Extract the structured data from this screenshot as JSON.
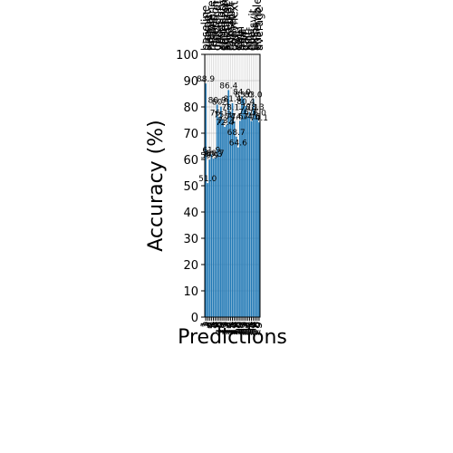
{
  "chart_data": {
    "type": "bar",
    "title": "",
    "xlabel": "Predictions",
    "ylabel": "Accuracy (%)",
    "ylim": [
      0,
      100
    ],
    "yticks": [
      0,
      10,
      20,
      30,
      40,
      50,
      60,
      70,
      80,
      90,
      100
    ],
    "grid": true,
    "color": "#1f77b4",
    "top_labels": [
      "baseline",
      "alexnet",
      "nasnet",
      "mobilenet",
      "resnet",
      "inception",
      "densenet",
      "vgg",
      "xception",
      "efficientnet",
      "squeezenet",
      "shufflenet",
      "mnasnet",
      "ghostnet",
      "regnet",
      "convnext",
      "vit",
      "deit",
      "swin",
      "beit",
      "levit",
      "cait",
      "xcit",
      "pit",
      "coat",
      "crossvit",
      "twins",
      "ensemble",
      "average"
    ],
    "values": [
      88.9,
      51.0,
      59.9,
      61.9,
      60.3,
      60.7,
      80.9,
      76.1,
      80.1,
      75.3,
      72.4,
      73.1,
      86.4,
      78.1,
      81.4,
      74.6,
      68.7,
      64.6,
      74.7,
      84.0,
      83.0,
      80.4,
      76.3,
      78.1,
      74.6,
      83.0,
      78.3,
      76.0,
      74.1
    ],
    "value_labels": [
      "88.9",
      "51.0",
      "59.9",
      "61.9",
      "60.3",
      "60.7",
      "80.9",
      "76.1",
      "80.1",
      "75.3",
      "72.4",
      "73.1",
      "86.4",
      "78.1",
      "81.4",
      "74.6",
      "68.7",
      "64.6",
      "74.7",
      "84.0",
      "83.0",
      "80.4",
      "76.3",
      "78.1",
      "74.6",
      "83.0",
      "78.3",
      "76.0",
      "74.1"
    ],
    "bottom_labels": [
      "1",
      "2",
      "3",
      "4",
      "5",
      "6",
      "7",
      "8",
      "9",
      "10",
      "11",
      "12",
      "13",
      "14",
      "15",
      "16",
      "17",
      "18",
      "19",
      "20",
      "21",
      "22",
      "23",
      "24",
      "25",
      "26",
      "27",
      "28",
      "29"
    ]
  }
}
